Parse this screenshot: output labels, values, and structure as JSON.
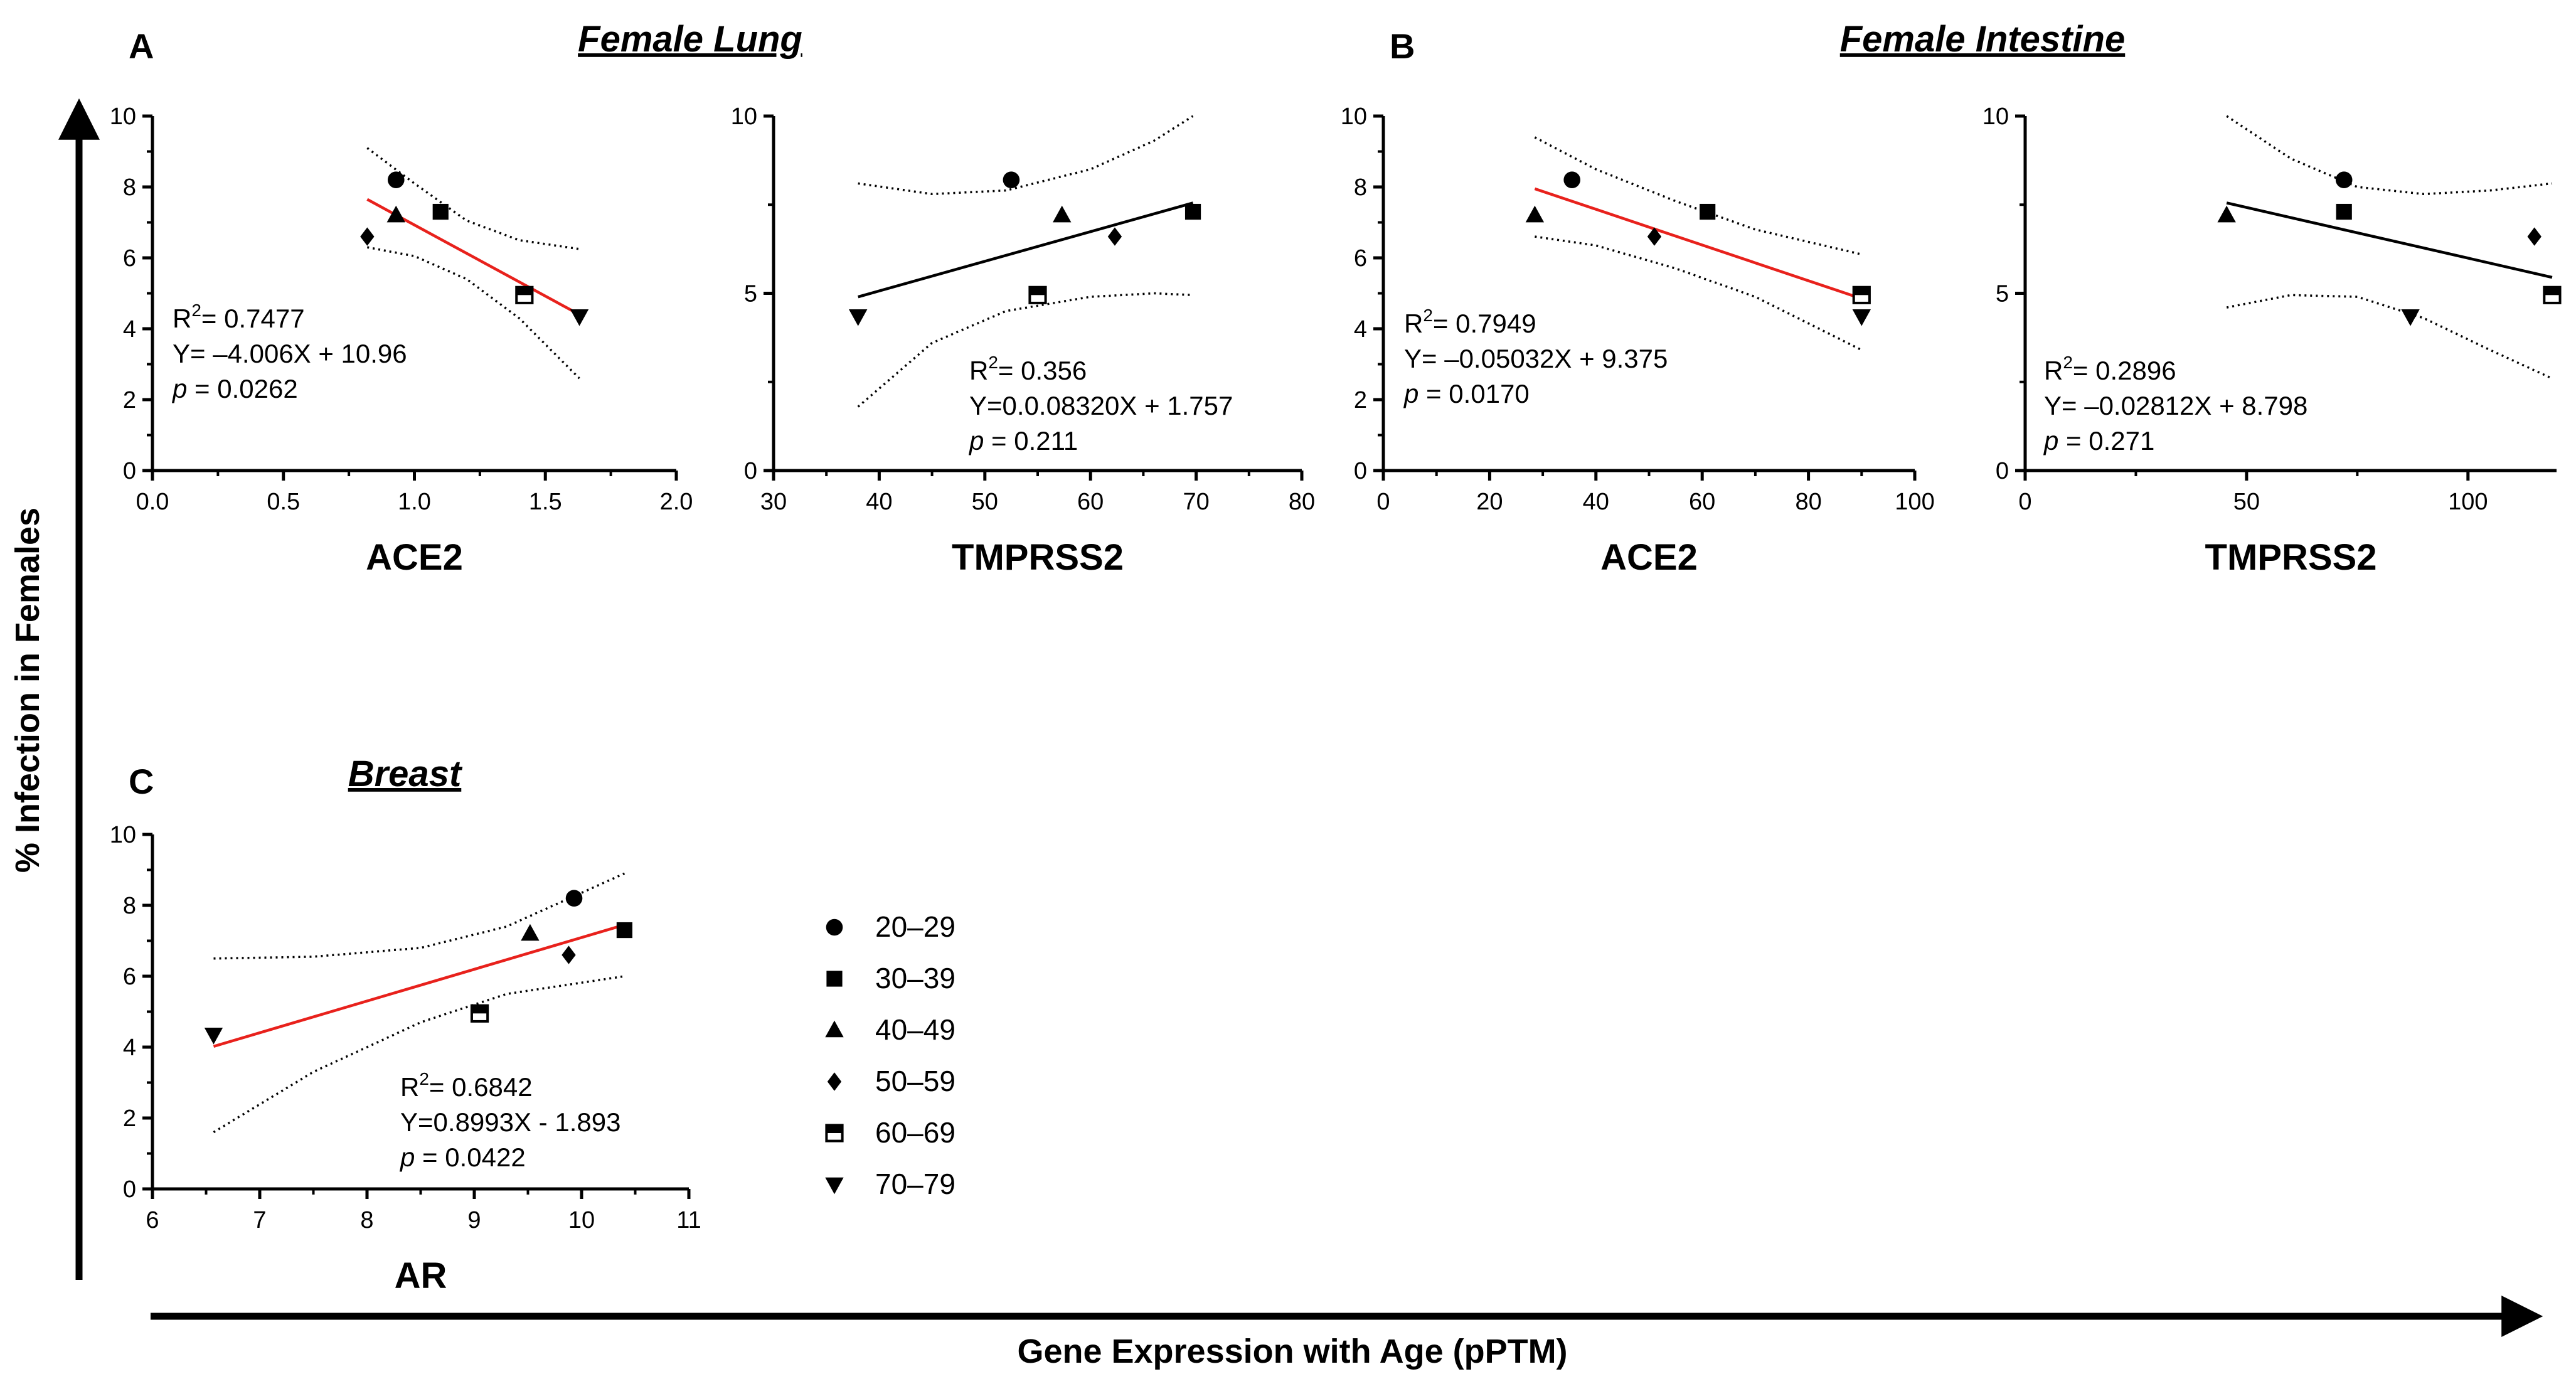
{
  "figure": {
    "y_axis_label": "% Infection in Females",
    "x_axis_label": "Gene Expression with Age (pPTM)",
    "colors": {
      "red_fit": "#e8211c",
      "black_fit": "#000000",
      "axis": "#000000"
    }
  },
  "panels": [
    {
      "letter": "A",
      "title": "Female Lung"
    },
    {
      "letter": "B",
      "title": "Female Intestine"
    },
    {
      "letter": "C",
      "title": "Breast"
    }
  ],
  "legend": [
    {
      "label": "20–29",
      "marker": "circle"
    },
    {
      "label": "30–39",
      "marker": "square"
    },
    {
      "label": "40–49",
      "marker": "triangle-up"
    },
    {
      "label": "50–59",
      "marker": "diamond"
    },
    {
      "label": "60–69",
      "marker": "half-square"
    },
    {
      "label": "70–79",
      "marker": "triangle-down"
    }
  ],
  "chart_data": [
    {
      "type": "scatter",
      "panel": "A",
      "xlabel": "ACE2",
      "ylabel": "% Infection in Females",
      "xlim": [
        0,
        2
      ],
      "xticks": [
        "0.0",
        "0.5",
        "1.0",
        "1.5",
        "2.0"
      ],
      "xtick_values": [
        0,
        0.5,
        1,
        1.5,
        2
      ],
      "ylim": [
        0,
        10
      ],
      "yticks": [
        "0",
        "2",
        "4",
        "6",
        "8",
        "10"
      ],
      "ytick_values": [
        0,
        2,
        4,
        6,
        8,
        10
      ],
      "series": [
        {
          "name": "20–29",
          "x": 0.93,
          "y": 8.2
        },
        {
          "name": "30–39",
          "x": 1.1,
          "y": 7.3
        },
        {
          "name": "40–49",
          "x": 0.93,
          "y": 7.2
        },
        {
          "name": "50–59",
          "x": 0.82,
          "y": 6.6
        },
        {
          "name": "60–69",
          "x": 1.42,
          "y": 4.95
        },
        {
          "name": "70–79",
          "x": 1.63,
          "y": 4.35
        }
      ],
      "fit": {
        "color": "red",
        "x_range": [
          0.82,
          1.63
        ],
        "slope": -4.006,
        "intercept": 10.96
      },
      "ci_upper": [
        [
          0.82,
          9.1
        ],
        [
          1.0,
          8.1
        ],
        [
          1.2,
          7.05
        ],
        [
          1.4,
          6.5
        ],
        [
          1.63,
          6.25
        ]
      ],
      "ci_lower": [
        [
          0.82,
          6.3
        ],
        [
          1.0,
          6.05
        ],
        [
          1.2,
          5.4
        ],
        [
          1.4,
          4.3
        ],
        [
          1.63,
          2.6
        ]
      ],
      "stats": {
        "r2_label": "R",
        "r2_value": "= 0.7477",
        "equation": "Y= –4.006X  + 10.96",
        "p_label": "p",
        "p_value": " = 0.0262"
      }
    },
    {
      "type": "scatter",
      "panel": "A",
      "xlabel": "TMPRSS2",
      "ylabel": "% Infection in Females",
      "xlim": [
        30,
        80
      ],
      "xticks": [
        "30",
        "40",
        "50",
        "60",
        "70",
        "80"
      ],
      "xtick_values": [
        30,
        40,
        50,
        60,
        70,
        80
      ],
      "ylim": [
        0,
        10
      ],
      "yticks": [
        "0",
        "5",
        "10"
      ],
      "ytick_values": [
        0,
        5,
        10
      ],
      "series": [
        {
          "name": "20–29",
          "x": 52.5,
          "y": 8.2
        },
        {
          "name": "30–39",
          "x": 69.7,
          "y": 7.3
        },
        {
          "name": "40–49",
          "x": 57.3,
          "y": 7.2
        },
        {
          "name": "50–59",
          "x": 62.3,
          "y": 6.6
        },
        {
          "name": "60–69",
          "x": 55.0,
          "y": 4.95
        },
        {
          "name": "70–79",
          "x": 38.0,
          "y": 4.35
        }
      ],
      "fit": {
        "color": "black",
        "x_range": [
          38.0,
          69.7
        ],
        "slope": 0.0832,
        "intercept": 1.757
      },
      "ci_upper": [
        [
          38,
          8.1
        ],
        [
          45,
          7.8
        ],
        [
          52,
          7.9
        ],
        [
          60,
          8.5
        ],
        [
          66,
          9.3
        ],
        [
          69.7,
          10.0
        ]
      ],
      "ci_lower": [
        [
          38,
          1.8
        ],
        [
          45,
          3.6
        ],
        [
          52,
          4.5
        ],
        [
          60,
          4.9
        ],
        [
          66,
          5.0
        ],
        [
          69.7,
          4.95
        ]
      ],
      "stats": {
        "r2_label": "R",
        "r2_value": "= 0.356",
        "equation": "Y=0.0.08320X  + 1.757",
        "p_label": "p",
        "p_value": " = 0.211"
      }
    },
    {
      "type": "scatter",
      "panel": "B",
      "xlabel": "ACE2",
      "ylabel": "% Infection in Females",
      "xlim": [
        0,
        100
      ],
      "xticks": [
        "0",
        "20",
        "40",
        "60",
        "80",
        "100"
      ],
      "xtick_values": [
        0,
        20,
        40,
        60,
        80,
        100
      ],
      "ylim": [
        0,
        10
      ],
      "yticks": [
        "0",
        "2",
        "4",
        "6",
        "8",
        "10"
      ],
      "ytick_values": [
        0,
        2,
        4,
        6,
        8,
        10
      ],
      "series": [
        {
          "name": "20–29",
          "x": 35.5,
          "y": 8.2
        },
        {
          "name": "30–39",
          "x": 61.0,
          "y": 7.3
        },
        {
          "name": "40–49",
          "x": 28.5,
          "y": 7.2
        },
        {
          "name": "50–59",
          "x": 51.0,
          "y": 6.6
        },
        {
          "name": "60–69",
          "x": 90.0,
          "y": 4.95
        },
        {
          "name": "70–79",
          "x": 90.0,
          "y": 4.35
        }
      ],
      "fit": {
        "color": "red",
        "x_range": [
          28.5,
          90.0
        ],
        "slope": -0.05032,
        "intercept": 9.375
      },
      "ci_upper": [
        [
          28.5,
          9.4
        ],
        [
          40,
          8.5
        ],
        [
          55,
          7.6
        ],
        [
          70,
          6.8
        ],
        [
          90,
          6.1
        ]
      ],
      "ci_lower": [
        [
          28.5,
          6.6
        ],
        [
          40,
          6.35
        ],
        [
          55,
          5.7
        ],
        [
          70,
          4.9
        ],
        [
          90,
          3.4
        ]
      ],
      "stats": {
        "r2_label": "R",
        "r2_value": "= 0.7949",
        "equation": "Y= –0.05032X  + 9.375",
        "p_label": "p",
        "p_value": " = 0.0170"
      }
    },
    {
      "type": "scatter",
      "panel": "B",
      "xlabel": "TMPRSS2",
      "ylabel": "% Infection in Females",
      "xlim": [
        0,
        120
      ],
      "xticks": [
        "0",
        "50",
        "100"
      ],
      "xtick_values": [
        0,
        50,
        100
      ],
      "ylim": [
        0,
        10
      ],
      "yticks": [
        "0",
        "5",
        "10"
      ],
      "ytick_values": [
        0,
        5,
        10
      ],
      "series": [
        {
          "name": "20–29",
          "x": 72.0,
          "y": 8.2
        },
        {
          "name": "30–39",
          "x": 72.0,
          "y": 7.3
        },
        {
          "name": "40–49",
          "x": 45.5,
          "y": 7.2
        },
        {
          "name": "50–59",
          "x": 115.0,
          "y": 6.6
        },
        {
          "name": "60–69",
          "x": 119.0,
          "y": 4.95
        },
        {
          "name": "70–79",
          "x": 87.0,
          "y": 4.35
        }
      ],
      "fit": {
        "color": "black",
        "x_range": [
          45.5,
          119.0
        ],
        "slope": -0.02812,
        "intercept": 8.798
      },
      "ci_upper": [
        [
          45.5,
          10.0
        ],
        [
          60,
          8.8
        ],
        [
          75,
          8.0
        ],
        [
          90,
          7.8
        ],
        [
          105,
          7.9
        ],
        [
          119,
          8.1
        ]
      ],
      "ci_lower": [
        [
          45.5,
          4.6
        ],
        [
          60,
          4.95
        ],
        [
          75,
          4.9
        ],
        [
          90,
          4.3
        ],
        [
          105,
          3.4
        ],
        [
          119,
          2.6
        ]
      ],
      "stats": {
        "r2_label": "R",
        "r2_value": "= 0.2896",
        "equation": "Y= –0.02812X  + 8.798",
        "p_label": "p",
        "p_value": " = 0.271"
      }
    },
    {
      "type": "scatter",
      "panel": "C",
      "xlabel": "AR",
      "ylabel": "% Infection in Females",
      "xlim": [
        6,
        11
      ],
      "xticks": [
        "6",
        "7",
        "8",
        "9",
        "10",
        "11"
      ],
      "xtick_values": [
        6,
        7,
        8,
        9,
        10,
        11
      ],
      "ylim": [
        0,
        10
      ],
      "yticks": [
        "0",
        "2",
        "4",
        "6",
        "8",
        "10"
      ],
      "ytick_values": [
        0,
        2,
        4,
        6,
        8,
        10
      ],
      "series": [
        {
          "name": "20–29",
          "x": 9.93,
          "y": 8.2
        },
        {
          "name": "30–39",
          "x": 10.4,
          "y": 7.3
        },
        {
          "name": "40–49",
          "x": 9.52,
          "y": 7.2
        },
        {
          "name": "50–59",
          "x": 9.88,
          "y": 6.6
        },
        {
          "name": "60–69",
          "x": 9.05,
          "y": 4.95
        },
        {
          "name": "70–79",
          "x": 6.57,
          "y": 4.35
        }
      ],
      "fit": {
        "color": "red",
        "x_range": [
          6.57,
          10.4
        ],
        "slope": 0.8993,
        "intercept": -1.893
      },
      "ci_upper": [
        [
          6.57,
          6.5
        ],
        [
          7.5,
          6.55
        ],
        [
          8.5,
          6.8
        ],
        [
          9.3,
          7.4
        ],
        [
          10.4,
          8.9
        ]
      ],
      "ci_lower": [
        [
          6.57,
          1.6
        ],
        [
          7.5,
          3.3
        ],
        [
          8.5,
          4.7
        ],
        [
          9.3,
          5.5
        ],
        [
          10.4,
          6.0
        ]
      ],
      "stats": {
        "r2_label": "R",
        "r2_value": "= 0.6842",
        "equation": "Y=0.8993X - 1.893",
        "p_label": "p",
        "p_value": " = 0.0422"
      }
    }
  ]
}
